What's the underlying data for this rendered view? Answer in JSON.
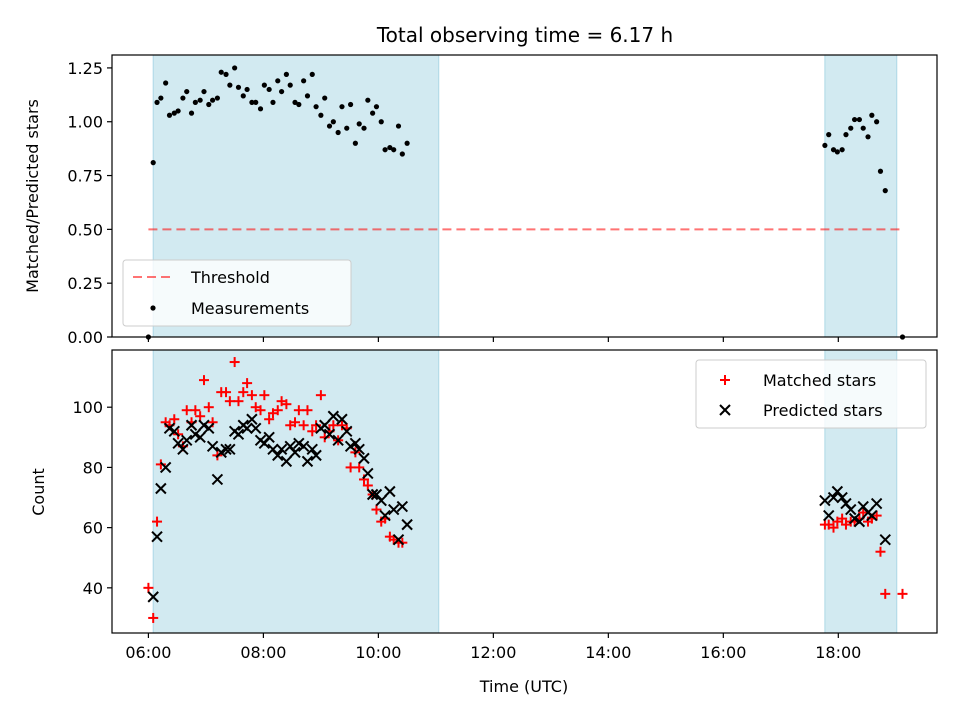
{
  "title": "Total observing time = 6.17 h",
  "xlabel": "Time (UTC)",
  "x_ticks": [
    "06:00",
    "08:00",
    "10:00",
    "12:00",
    "14:00",
    "16:00",
    "18:00"
  ],
  "colors": {
    "shade": "#add8e6",
    "threshold": "#ff0000",
    "measurements": "#000000",
    "matched": "#ff0000",
    "predicted": "#000000"
  },
  "chart_data": [
    {
      "type": "scatter",
      "panel": "top",
      "ylabel": "Matched/Predicted stars",
      "xlim": [
        "05:22",
        "19:43"
      ],
      "ylim": [
        0,
        1.31
      ],
      "y_ticks": [
        "0.00",
        "0.25",
        "0.50",
        "0.75",
        "1.00",
        "1.25"
      ],
      "grid": false,
      "legend_position": "lower-left",
      "observing_windows": [
        [
          "06:05",
          "11:03"
        ],
        [
          "17:46",
          "19:01"
        ]
      ],
      "threshold": {
        "name": "Threshold",
        "value": 0.5,
        "x_range": [
          "06:00",
          "19:07"
        ],
        "style": "dashed"
      },
      "series": [
        {
          "name": "Measurements",
          "marker": "dot",
          "points": [
            [
              "06:00",
              0.0
            ],
            [
              "06:05",
              0.81
            ],
            [
              "06:09",
              1.09
            ],
            [
              "06:13",
              1.11
            ],
            [
              "06:18",
              1.18
            ],
            [
              "06:22",
              1.03
            ],
            [
              "06:27",
              1.04
            ],
            [
              "06:31",
              1.05
            ],
            [
              "06:36",
              1.11
            ],
            [
              "06:40",
              1.14
            ],
            [
              "06:45",
              1.04
            ],
            [
              "06:49",
              1.09
            ],
            [
              "06:54",
              1.1
            ],
            [
              "06:58",
              1.14
            ],
            [
              "07:03",
              1.08
            ],
            [
              "07:07",
              1.1
            ],
            [
              "07:12",
              1.11
            ],
            [
              "07:16",
              1.23
            ],
            [
              "07:21",
              1.22
            ],
            [
              "07:25",
              1.17
            ],
            [
              "07:30",
              1.25
            ],
            [
              "07:34",
              1.16
            ],
            [
              "07:39",
              1.12
            ],
            [
              "07:43",
              1.15
            ],
            [
              "07:48",
              1.09
            ],
            [
              "07:52",
              1.09
            ],
            [
              "07:57",
              1.06
            ],
            [
              "08:01",
              1.17
            ],
            [
              "08:06",
              1.15
            ],
            [
              "08:10",
              1.09
            ],
            [
              "08:15",
              1.19
            ],
            [
              "08:19",
              1.14
            ],
            [
              "08:24",
              1.22
            ],
            [
              "08:28",
              1.17
            ],
            [
              "08:33",
              1.09
            ],
            [
              "08:37",
              1.08
            ],
            [
              "08:42",
              1.19
            ],
            [
              "08:46",
              1.12
            ],
            [
              "08:51",
              1.22
            ],
            [
              "08:55",
              1.07
            ],
            [
              "09:00",
              1.03
            ],
            [
              "09:04",
              1.11
            ],
            [
              "09:09",
              0.98
            ],
            [
              "09:13",
              1.0
            ],
            [
              "09:18",
              0.95
            ],
            [
              "09:22",
              1.07
            ],
            [
              "09:27",
              0.97
            ],
            [
              "09:31",
              1.08
            ],
            [
              "09:36",
              0.9
            ],
            [
              "09:40",
              0.99
            ],
            [
              "09:45",
              0.97
            ],
            [
              "09:49",
              1.1
            ],
            [
              "09:54",
              1.04
            ],
            [
              "09:58",
              1.07
            ],
            [
              "10:03",
              1.0
            ],
            [
              "10:07",
              0.87
            ],
            [
              "10:12",
              0.88
            ],
            [
              "10:16",
              0.87
            ],
            [
              "10:21",
              0.98
            ],
            [
              "10:25",
              0.85
            ],
            [
              "10:30",
              0.9
            ],
            [
              "17:46",
              0.89
            ],
            [
              "17:50",
              0.94
            ],
            [
              "17:55",
              0.87
            ],
            [
              "17:59",
              0.86
            ],
            [
              "18:04",
              0.87
            ],
            [
              "18:08",
              0.94
            ],
            [
              "18:13",
              0.97
            ],
            [
              "18:17",
              1.01
            ],
            [
              "18:22",
              1.01
            ],
            [
              "18:26",
              0.97
            ],
            [
              "18:31",
              0.93
            ],
            [
              "18:35",
              1.03
            ],
            [
              "18:40",
              1.0
            ],
            [
              "18:44",
              0.77
            ],
            [
              "18:49",
              0.68
            ],
            [
              "19:07",
              0.0
            ]
          ]
        }
      ]
    },
    {
      "type": "scatter",
      "panel": "bottom",
      "ylabel": "Count",
      "xlim": [
        "05:22",
        "19:43"
      ],
      "ylim": [
        25,
        119
      ],
      "y_ticks": [
        "40",
        "60",
        "80",
        "100"
      ],
      "grid": false,
      "legend_position": "upper-right",
      "observing_windows": [
        [
          "06:05",
          "11:03"
        ],
        [
          "17:46",
          "19:01"
        ]
      ],
      "series": [
        {
          "name": "Matched stars",
          "marker": "plus",
          "points": [
            [
              "06:00",
              40
            ],
            [
              "06:05",
              30
            ],
            [
              "06:09",
              62
            ],
            [
              "06:13",
              81
            ],
            [
              "06:18",
              95
            ],
            [
              "06:22",
              94
            ],
            [
              "06:27",
              96
            ],
            [
              "06:31",
              91
            ],
            [
              "06:36",
              87
            ],
            [
              "06:40",
              99
            ],
            [
              "06:45",
              95
            ],
            [
              "06:49",
              99
            ],
            [
              "06:54",
              97
            ],
            [
              "06:58",
              109
            ],
            [
              "07:03",
              100
            ],
            [
              "07:07",
              95
            ],
            [
              "07:12",
              84
            ],
            [
              "07:16",
              105
            ],
            [
              "07:21",
              105
            ],
            [
              "07:25",
              102
            ],
            [
              "07:30",
              115
            ],
            [
              "07:34",
              102
            ],
            [
              "07:39",
              105
            ],
            [
              "07:43",
              108
            ],
            [
              "07:48",
              104
            ],
            [
              "07:52",
              100
            ],
            [
              "07:57",
              99
            ],
            [
              "08:01",
              104
            ],
            [
              "08:06",
              96
            ],
            [
              "08:10",
              98
            ],
            [
              "08:15",
              99
            ],
            [
              "08:19",
              102
            ],
            [
              "08:24",
              101
            ],
            [
              "08:28",
              94
            ],
            [
              "08:33",
              95
            ],
            [
              "08:37",
              99
            ],
            [
              "08:42",
              94
            ],
            [
              "08:46",
              99
            ],
            [
              "08:51",
              92
            ],
            [
              "08:55",
              94
            ],
            [
              "09:00",
              104
            ],
            [
              "09:04",
              90
            ],
            [
              "09:09",
              92
            ],
            [
              "09:13",
              94
            ],
            [
              "09:18",
              89
            ],
            [
              "09:22",
              94
            ],
            [
              "09:27",
              93
            ],
            [
              "09:31",
              80
            ],
            [
              "09:36",
              85
            ],
            [
              "09:40",
              80
            ],
            [
              "09:45",
              76
            ],
            [
              "09:49",
              74
            ],
            [
              "09:54",
              71
            ],
            [
              "09:58",
              66
            ],
            [
              "10:03",
              62
            ],
            [
              "10:07",
              63
            ],
            [
              "10:12",
              57
            ],
            [
              "10:16",
              56
            ],
            [
              "10:21",
              55
            ],
            [
              "10:25",
              55
            ],
            [
              "17:46",
              61
            ],
            [
              "17:50",
              61
            ],
            [
              "17:55",
              60
            ],
            [
              "17:59",
              62
            ],
            [
              "18:04",
              63
            ],
            [
              "18:08",
              61
            ],
            [
              "18:13",
              62
            ],
            [
              "18:17",
              62
            ],
            [
              "18:22",
              63
            ],
            [
              "18:26",
              65
            ],
            [
              "18:31",
              62
            ],
            [
              "18:35",
              63
            ],
            [
              "18:40",
              64
            ],
            [
              "18:44",
              52
            ],
            [
              "18:49",
              38
            ],
            [
              "19:07",
              38
            ]
          ]
        },
        {
          "name": "Predicted stars",
          "marker": "x",
          "points": [
            [
              "06:05",
              37
            ],
            [
              "06:09",
              57
            ],
            [
              "06:13",
              73
            ],
            [
              "06:18",
              80
            ],
            [
              "06:22",
              93
            ],
            [
              "06:27",
              92
            ],
            [
              "06:31",
              88
            ],
            [
              "06:36",
              86
            ],
            [
              "06:40",
              89
            ],
            [
              "06:45",
              94
            ],
            [
              "06:49",
              91
            ],
            [
              "06:54",
              90
            ],
            [
              "06:58",
              94
            ],
            [
              "07:03",
              93
            ],
            [
              "07:07",
              87
            ],
            [
              "07:12",
              76
            ],
            [
              "07:16",
              85
            ],
            [
              "07:21",
              86
            ],
            [
              "07:25",
              86
            ],
            [
              "07:30",
              92
            ],
            [
              "07:34",
              91
            ],
            [
              "07:39",
              94
            ],
            [
              "07:43",
              93
            ],
            [
              "07:48",
              96
            ],
            [
              "07:52",
              93
            ],
            [
              "07:57",
              89
            ],
            [
              "08:01",
              88
            ],
            [
              "08:06",
              90
            ],
            [
              "08:10",
              86
            ],
            [
              "08:15",
              84
            ],
            [
              "08:19",
              86
            ],
            [
              "08:24",
              82
            ],
            [
              "08:28",
              87
            ],
            [
              "08:33",
              85
            ],
            [
              "08:37",
              88
            ],
            [
              "08:42",
              87
            ],
            [
              "08:46",
              82
            ],
            [
              "08:51",
              86
            ],
            [
              "08:55",
              84
            ],
            [
              "09:00",
              93
            ],
            [
              "09:04",
              94
            ],
            [
              "09:09",
              91
            ],
            [
              "09:13",
              97
            ],
            [
              "09:18",
              89
            ],
            [
              "09:22",
              96
            ],
            [
              "09:27",
              92
            ],
            [
              "09:31",
              87
            ],
            [
              "09:36",
              88
            ],
            [
              "09:40",
              86
            ],
            [
              "09:45",
              83
            ],
            [
              "09:49",
              78
            ],
            [
              "09:54",
              71
            ],
            [
              "09:58",
              71
            ],
            [
              "10:03",
              69
            ],
            [
              "10:07",
              64
            ],
            [
              "10:12",
              72
            ],
            [
              "10:16",
              66
            ],
            [
              "10:21",
              56
            ],
            [
              "10:25",
              67
            ],
            [
              "10:30",
              61
            ],
            [
              "17:46",
              69
            ],
            [
              "17:50",
              64
            ],
            [
              "17:55",
              70
            ],
            [
              "17:59",
              72
            ],
            [
              "18:04",
              70
            ],
            [
              "18:08",
              68
            ],
            [
              "18:13",
              66
            ],
            [
              "18:17",
              63
            ],
            [
              "18:22",
              62
            ],
            [
              "18:26",
              67
            ],
            [
              "18:31",
              65
            ],
            [
              "18:35",
              64
            ],
            [
              "18:40",
              68
            ],
            [
              "18:49",
              56
            ]
          ]
        }
      ]
    }
  ]
}
